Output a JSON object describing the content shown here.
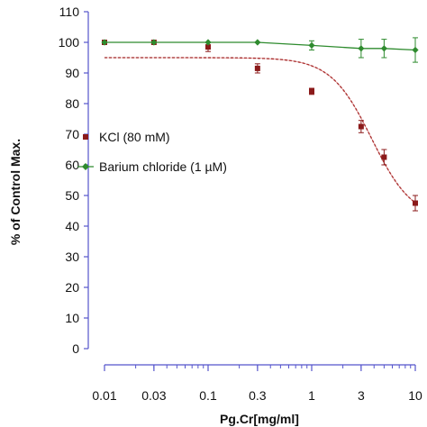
{
  "chart_data": {
    "type": "scatter",
    "title": "",
    "xlabel": "Pg.Cr[mg/ml]",
    "ylabel": "% of Control Max.",
    "x_scale": "log",
    "xlim": [
      0.01,
      10
    ],
    "ylim": [
      0,
      110
    ],
    "x_ticks": [
      0.01,
      0.03,
      0.1,
      0.3,
      1,
      3,
      10
    ],
    "x_tick_labels": [
      "0.01",
      "0.03",
      "0.1",
      "0.3",
      "1",
      "3",
      "10"
    ],
    "y_ticks": [
      0,
      10,
      20,
      30,
      40,
      50,
      60,
      70,
      80,
      90,
      100,
      110
    ],
    "y_tick_labels": [
      "0",
      "10",
      "20",
      "30",
      "40",
      "50",
      "60",
      "70",
      "80",
      "90",
      "100",
      "110"
    ],
    "grid": false,
    "legend": "left-middle",
    "axis_color": "#5555cc",
    "series": [
      {
        "name": "KCl (80 mM)",
        "color": "#8b1a1a",
        "marker": "square",
        "x": [
          0.01,
          0.03,
          0.1,
          0.3,
          1,
          3,
          5,
          10
        ],
        "y": [
          100,
          100,
          98.5,
          91.5,
          84,
          72.5,
          62.5,
          47.5
        ],
        "error": [
          0,
          0,
          1.5,
          1.5,
          1,
          2,
          2.5,
          2.5
        ],
        "fit": {
          "top": 95,
          "bottom": 42,
          "ec50": 3.8,
          "hill": 2.2,
          "style": "dashed"
        }
      },
      {
        "name": "Barium chloride (1 µM)",
        "color": "#2e8b2e",
        "marker": "diamond",
        "x": [
          0.01,
          0.03,
          0.1,
          0.3,
          1,
          3,
          5,
          10
        ],
        "y": [
          100,
          100,
          100,
          100,
          99,
          98,
          98,
          97.5
        ],
        "error": [
          0,
          0,
          0,
          0,
          1.5,
          3,
          3,
          4
        ],
        "fit": {
          "style": "solid"
        }
      }
    ]
  }
}
